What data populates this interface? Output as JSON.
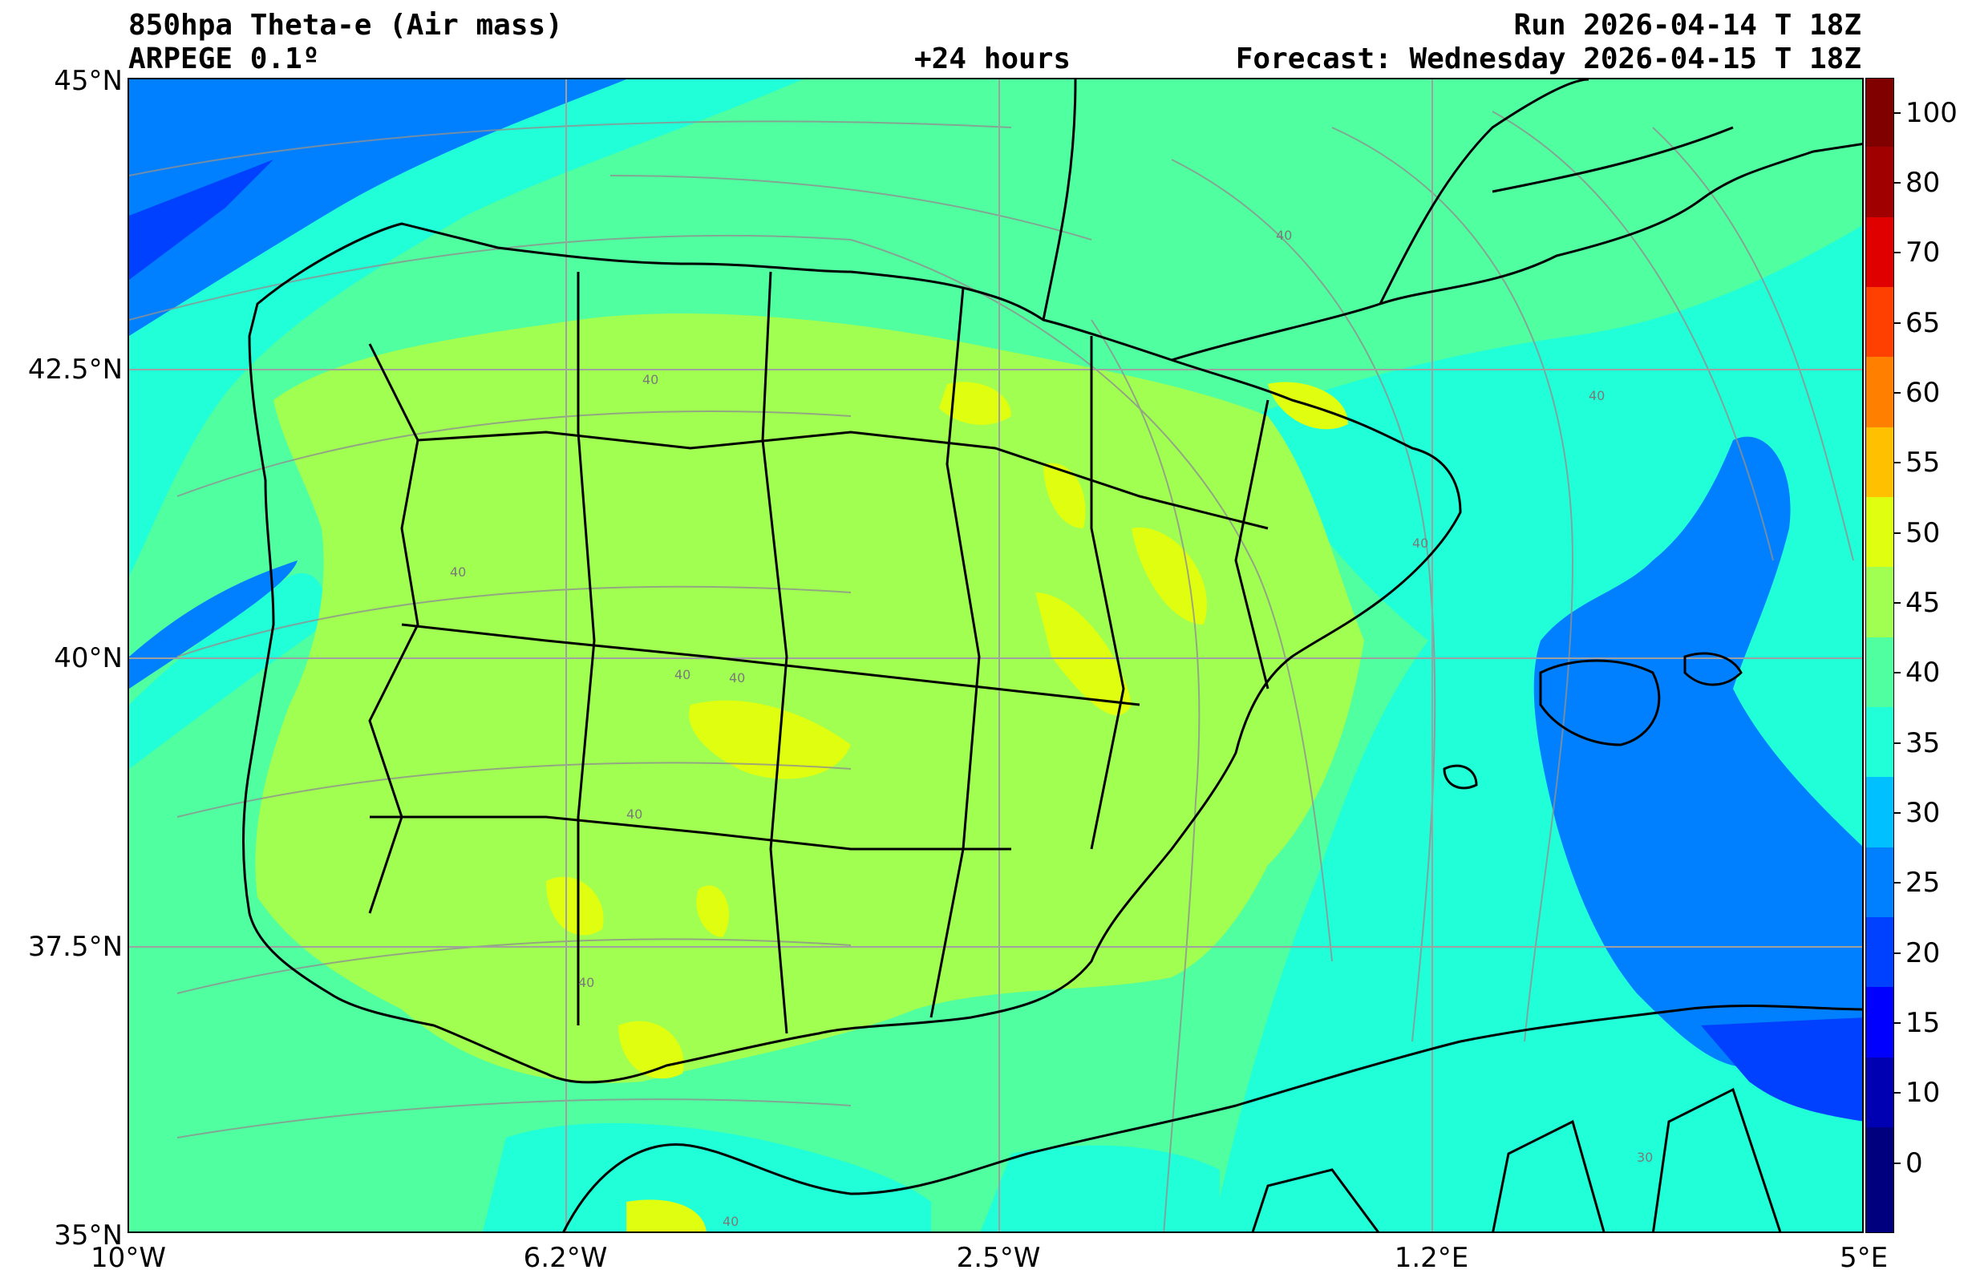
{
  "header": {
    "title_line1": "850hpa Theta-e (Air mass)",
    "title_line2": "ARPEGE 0.1º",
    "lead_time": "+24 hours",
    "run": "Run 2026-04-14 T 18Z",
    "forecast": "Forecast: Wednesday 2026-04-15 T 18Z"
  },
  "axes": {
    "lat_labels": [
      "45°N",
      "42.5°N",
      "40°N",
      "37.5°N",
      "35°N"
    ],
    "lon_labels": [
      "10°W",
      "6.2°W",
      "2.5°W",
      "1.2°E",
      "5°E"
    ]
  },
  "colorbar": {
    "levels": [
      "0",
      "10",
      "15",
      "20",
      "25",
      "30",
      "35",
      "40",
      "45",
      "50",
      "55",
      "60",
      "65",
      "70",
      "80",
      "100"
    ],
    "colors": [
      "#00007f",
      "#0000b2",
      "#0000ff",
      "#0040ff",
      "#0080ff",
      "#00c0ff",
      "#20ffd8",
      "#50ffa0",
      "#a0ff50",
      "#e0ff10",
      "#ffc000",
      "#ff8000",
      "#ff4000",
      "#e00000",
      "#a00000",
      "#800000"
    ]
  },
  "contour_labels": [
    "40",
    "30"
  ],
  "colors": {
    "field_low": "#0080ff",
    "field_cool": "#20ffd8",
    "field_mid": "#50ffa0",
    "field_warm": "#a0ff50",
    "field_hot": "#e0ff10",
    "coast": "#000000",
    "streamline": "#909090"
  }
}
